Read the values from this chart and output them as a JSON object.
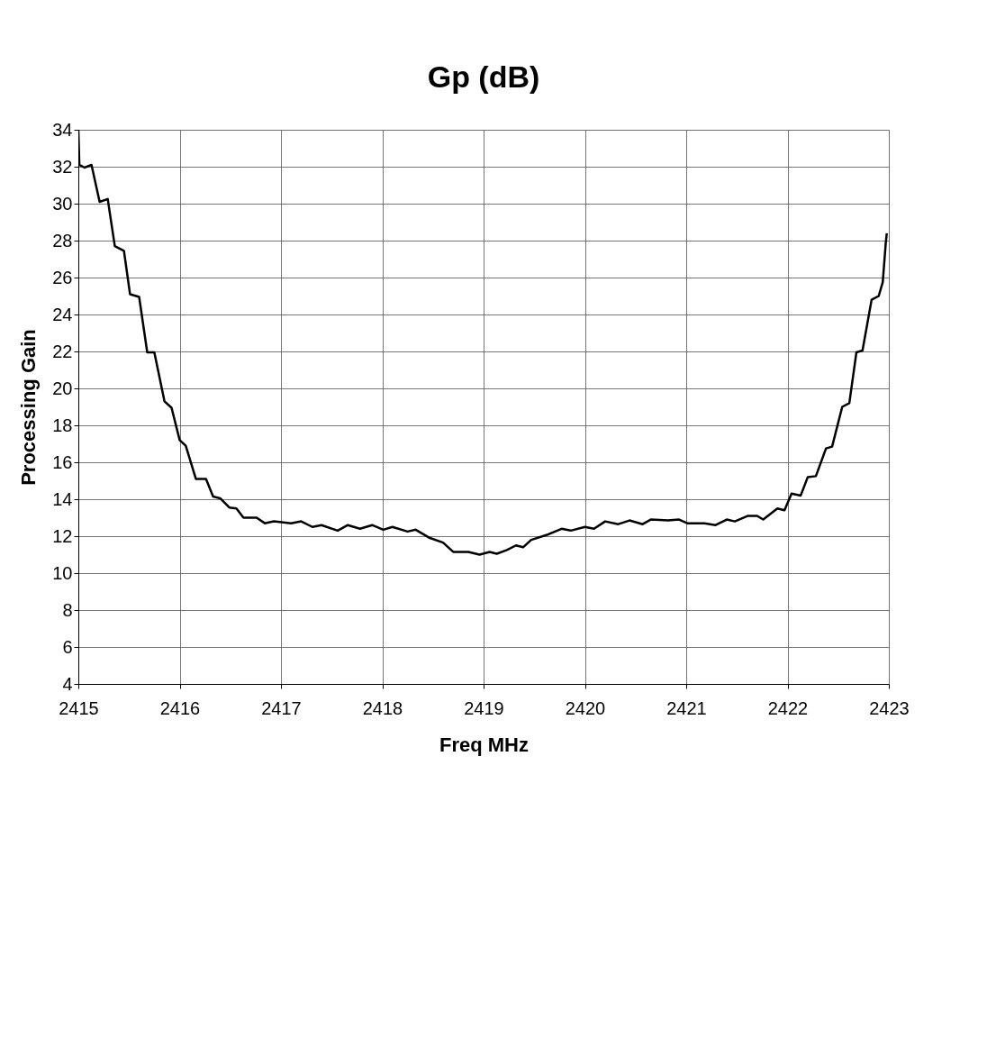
{
  "chart_data": {
    "type": "line",
    "title": "Gp (dB)",
    "xlabel": "Freq MHz",
    "ylabel": "Processing Gain",
    "xlim": [
      2415,
      2423
    ],
    "xticks": [
      2415,
      2416,
      2417,
      2418,
      2419,
      2420,
      2421,
      2422,
      2423
    ],
    "ylim": [
      4,
      34
    ],
    "yticks": [
      4,
      6,
      8,
      10,
      12,
      14,
      16,
      18,
      20,
      22,
      24,
      26,
      28,
      30,
      32,
      34
    ],
    "grid": true,
    "marker": "none",
    "line_style": "solid",
    "series": [
      {
        "color": "#000000",
        "x": [
          2415.0,
          2415.01,
          2415.06,
          2415.13,
          2415.21,
          2415.29,
          2415.36,
          2415.45,
          2415.51,
          2415.6,
          2415.68,
          2415.75,
          2415.85,
          2415.92,
          2416.0,
          2416.06,
          2416.16,
          2416.26,
          2416.33,
          2416.4,
          2416.49,
          2416.56,
          2416.63,
          2416.76,
          2416.84,
          2416.93,
          2417.1,
          2417.2,
          2417.31,
          2417.4,
          2417.56,
          2417.66,
          2417.78,
          2417.9,
          2418.01,
          2418.1,
          2418.25,
          2418.33,
          2418.47,
          2418.6,
          2418.7,
          2418.85,
          2418.96,
          2419.06,
          2419.13,
          2419.23,
          2419.32,
          2419.39,
          2419.47,
          2419.64,
          2419.77,
          2419.86,
          2420.0,
          2420.09,
          2420.2,
          2420.33,
          2420.44,
          2420.57,
          2420.65,
          2420.82,
          2420.93,
          2421.01,
          2421.18,
          2421.29,
          2421.4,
          2421.48,
          2421.61,
          2421.7,
          2421.76,
          2421.9,
          2421.97,
          2422.04,
          2422.13,
          2422.2,
          2422.28,
          2422.38,
          2422.44,
          2422.54,
          2422.61,
          2422.68,
          2422.74,
          2422.83,
          2422.9,
          2422.94,
          2422.97,
          2422.98
        ],
        "values": [
          34.0,
          32.1,
          31.95,
          32.1,
          30.1,
          30.25,
          27.7,
          27.45,
          25.1,
          24.95,
          21.95,
          21.95,
          19.3,
          18.95,
          17.2,
          16.9,
          15.1,
          15.1,
          14.15,
          14.05,
          13.55,
          13.5,
          13.0,
          13.0,
          12.7,
          12.8,
          12.7,
          12.8,
          12.5,
          12.6,
          12.3,
          12.6,
          12.4,
          12.6,
          12.35,
          12.5,
          12.25,
          12.35,
          11.9,
          11.65,
          11.15,
          11.15,
          11.0,
          11.15,
          11.05,
          11.25,
          11.5,
          11.4,
          11.8,
          12.1,
          12.4,
          12.3,
          12.5,
          12.4,
          12.8,
          12.65,
          12.85,
          12.65,
          12.9,
          12.85,
          12.9,
          12.7,
          12.7,
          12.6,
          12.9,
          12.8,
          13.1,
          13.1,
          12.9,
          13.5,
          13.4,
          14.3,
          14.2,
          15.2,
          15.25,
          16.75,
          16.85,
          19.0,
          19.2,
          21.95,
          22.05,
          24.8,
          25.0,
          25.75,
          27.9,
          28.4
        ]
      }
    ]
  }
}
